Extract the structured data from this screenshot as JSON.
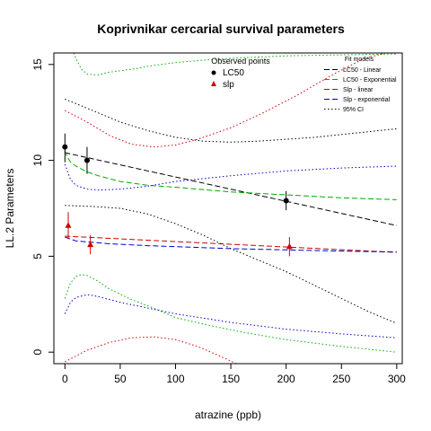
{
  "chart_data": {
    "type": "scatter",
    "title": "Koprivnikar cercarial survival parameters",
    "xlabel": "atrazine (ppb)",
    "ylabel": "LL.2 Parameters",
    "xlim": [
      -10,
      305
    ],
    "ylim": [
      -0.6,
      15.6
    ],
    "x_ticks": [
      0,
      50,
      100,
      150,
      200,
      250,
      300
    ],
    "x_tick_labels": [
      "0",
      "50",
      "100",
      "150",
      "200",
      "250",
      "300"
    ],
    "y_ticks": [
      0,
      5,
      10,
      15
    ],
    "y_tick_labels": [
      "0",
      "5",
      "10",
      "15"
    ],
    "grid": false,
    "points_legend": {
      "title": "Observed points",
      "placement": "top-center",
      "entries": [
        {
          "label": "LC50",
          "marker": "circle",
          "color": "#000000"
        },
        {
          "label": "slp",
          "marker": "triangle",
          "color": "#cc0000"
        }
      ]
    },
    "lines_legend": {
      "title": "Fit models",
      "placement": "top-right",
      "entries": [
        {
          "label": "LC50 - Linear",
          "color": "#000000",
          "dash": "dashed"
        },
        {
          "label": "LC50 - Exponential",
          "color": "#00aa00",
          "dash": "dashed"
        },
        {
          "label": "Slp - linear",
          "color": "#cc0000",
          "dash": "dashed"
        },
        {
          "label": "Slp - exponential",
          "color": "#0000cc",
          "dash": "dashed"
        },
        {
          "label": "95% CI",
          "color": "#000000",
          "dash": "dotted"
        }
      ]
    },
    "points": [
      {
        "series": "LC50",
        "x": 0,
        "y": 10.7,
        "err_low": 9.9,
        "err_high": 11.4,
        "color": "#000000",
        "marker": "circle"
      },
      {
        "series": "LC50",
        "x": 20,
        "y": 10.0,
        "err_low": 9.3,
        "err_high": 10.7,
        "color": "#000000",
        "marker": "circle"
      },
      {
        "series": "LC50",
        "x": 200,
        "y": 7.9,
        "err_low": 7.4,
        "err_high": 8.4,
        "color": "#000000",
        "marker": "circle"
      },
      {
        "series": "slp",
        "x": 3,
        "y": 6.6,
        "err_low": 5.9,
        "err_high": 7.3,
        "color": "#cc0000",
        "marker": "triangle"
      },
      {
        "series": "slp",
        "x": 23,
        "y": 5.6,
        "err_low": 5.1,
        "err_high": 6.1,
        "color": "#cc0000",
        "marker": "triangle"
      },
      {
        "series": "slp",
        "x": 203,
        "y": 5.5,
        "err_low": 5.0,
        "err_high": 6.0,
        "color": "#cc0000",
        "marker": "triangle"
      }
    ],
    "lines": [
      {
        "name": "LC50 - Linear",
        "color": "#000000",
        "dash": "dashed",
        "x": [
          0,
          300
        ],
        "y": [
          10.4,
          6.6
        ]
      },
      {
        "name": "LC50 - Exponential",
        "color": "#00aa00",
        "dash": "dashed",
        "x": [
          0,
          2,
          5,
          10,
          20,
          30,
          50,
          75,
          100,
          150,
          200,
          250,
          300
        ],
        "y": [
          10.5,
          10.2,
          9.9,
          9.7,
          9.4,
          9.2,
          8.9,
          8.7,
          8.6,
          8.35,
          8.2,
          8.05,
          7.95
        ]
      },
      {
        "name": "Slp - linear",
        "color": "#cc0000",
        "dash": "dashed",
        "x": [
          0,
          300
        ],
        "y": [
          6.05,
          5.2
        ]
      },
      {
        "name": "Slp - exponential",
        "color": "#0000cc",
        "dash": "dashed",
        "x": [
          0,
          5,
          10,
          20,
          40,
          75,
          100,
          150,
          200,
          250,
          300
        ],
        "y": [
          6.0,
          5.9,
          5.8,
          5.75,
          5.65,
          5.55,
          5.5,
          5.4,
          5.33,
          5.27,
          5.22
        ]
      },
      {
        "name": "CI LC50 linear upper",
        "color": "#000000",
        "dash": "dotted",
        "x": [
          0,
          25,
          50,
          75,
          100,
          125,
          150,
          175,
          200,
          225,
          250,
          275,
          300
        ],
        "y": [
          13.2,
          12.6,
          12.0,
          11.55,
          11.2,
          11.0,
          10.95,
          11.0,
          11.1,
          11.2,
          11.35,
          11.5,
          11.65
        ]
      },
      {
        "name": "CI LC50 linear lower",
        "color": "#000000",
        "dash": "dotted",
        "x": [
          0,
          25,
          50,
          75,
          100,
          125,
          150,
          175,
          200,
          225,
          250,
          275,
          300
        ],
        "y": [
          7.65,
          7.6,
          7.5,
          7.2,
          6.7,
          6.1,
          5.4,
          4.8,
          4.2,
          3.5,
          2.8,
          2.1,
          1.5
        ]
      },
      {
        "name": "CI LC50 exponential upper",
        "color": "#00aa00",
        "dash": "dotted",
        "x": [
          8,
          10,
          15,
          20,
          30,
          40,
          60,
          80,
          100,
          130,
          160,
          200,
          250,
          300
        ],
        "y": [
          15.6,
          15.3,
          14.75,
          14.5,
          14.45,
          14.6,
          14.75,
          14.95,
          15.1,
          15.25,
          15.35,
          15.45,
          15.5,
          15.55
        ]
      },
      {
        "name": "CI LC50 exponential lower",
        "color": "#00aa00",
        "dash": "dotted",
        "x": [
          0,
          5,
          10,
          15,
          20,
          30,
          40,
          60,
          80,
          100,
          130,
          160,
          200,
          250,
          300
        ],
        "y": [
          2.8,
          3.6,
          3.95,
          4.05,
          4.0,
          3.7,
          3.3,
          2.75,
          2.3,
          1.8,
          1.4,
          1.05,
          0.65,
          0.3,
          0.0
        ]
      },
      {
        "name": "CI slp upper",
        "color": "#cc0000",
        "dash": "dotted",
        "x": [
          0,
          20,
          40,
          60,
          80,
          100,
          120,
          150,
          180,
          210,
          240,
          270,
          290
        ],
        "y": [
          12.6,
          12.0,
          11.3,
          10.85,
          10.7,
          10.8,
          11.1,
          11.7,
          12.5,
          13.4,
          14.4,
          15.3,
          15.6
        ]
      },
      {
        "name": "CI slp lower",
        "color": "#cc0000",
        "dash": "dotted",
        "x": [
          0,
          20,
          40,
          60,
          80,
          100,
          120,
          140,
          155
        ],
        "y": [
          -0.5,
          0.1,
          0.5,
          0.75,
          0.8,
          0.65,
          0.3,
          -0.2,
          -0.6
        ]
      },
      {
        "name": "CI slp exponential upper",
        "color": "#0000cc",
        "dash": "dotted",
        "x": [
          0,
          5,
          10,
          20,
          30,
          50,
          75,
          100,
          150,
          200,
          250,
          300
        ],
        "y": [
          9.8,
          9.0,
          8.7,
          8.5,
          8.45,
          8.5,
          8.65,
          8.9,
          9.2,
          9.45,
          9.6,
          9.7
        ]
      },
      {
        "name": "CI slp exponential lower",
        "color": "#0000cc",
        "dash": "dotted",
        "x": [
          0,
          5,
          10,
          20,
          30,
          50,
          75,
          100,
          150,
          200,
          250,
          300
        ],
        "y": [
          2.0,
          2.6,
          2.85,
          3.0,
          2.9,
          2.6,
          2.3,
          2.0,
          1.55,
          1.2,
          0.95,
          0.75
        ]
      }
    ]
  }
}
